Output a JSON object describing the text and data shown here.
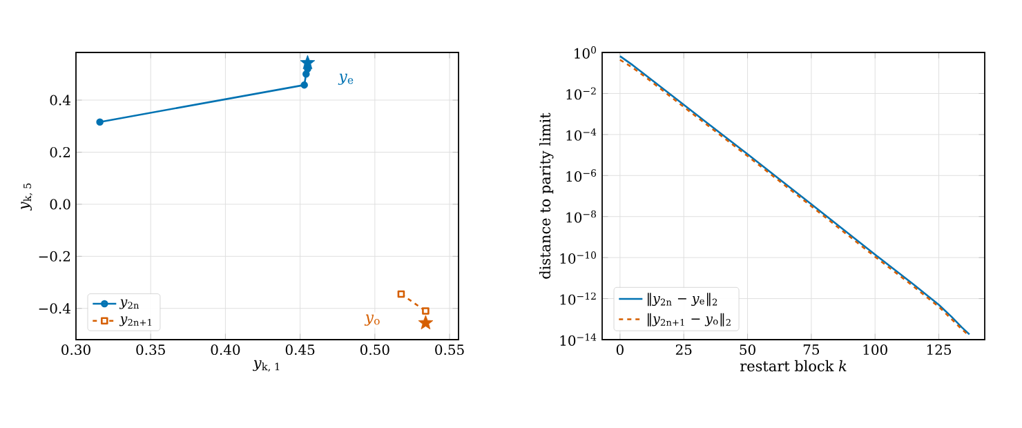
{
  "chart_data": [
    {
      "type": "line",
      "xlabel": "*y*$_{k, 1}$",
      "ylabel": "*y*$_{k, 5}$",
      "grid": true,
      "legend": "bottom left",
      "xlim": [
        0.3,
        0.556
      ],
      "ylim": [
        -0.52,
        0.583
      ],
      "xticks": [
        {
          "value": 0.3,
          "label": "0.30"
        },
        {
          "value": 0.35,
          "label": "0.35"
        },
        {
          "value": 0.4,
          "label": "0.40"
        },
        {
          "value": 0.45,
          "label": "0.45"
        },
        {
          "value": 0.5,
          "label": "0.50"
        },
        {
          "value": 0.55,
          "label": "0.55"
        }
      ],
      "yticks": [
        {
          "value": -0.4,
          "label": "−0.4"
        },
        {
          "value": -0.2,
          "label": "−0.2"
        },
        {
          "value": 0.0,
          "label": "0.0"
        },
        {
          "value": 0.2,
          "label": "0.2"
        },
        {
          "value": 0.4,
          "label": "0.4"
        }
      ],
      "series": [
        {
          "name": "*y*$_{2n}$",
          "color": "#0072b2",
          "marker": "circle",
          "line_style": "solid",
          "x": [
            0.316,
            0.4528,
            0.454,
            0.455
          ],
          "values": [
            0.316,
            0.458,
            0.5,
            0.52
          ]
        },
        {
          "name": "*y*$_{2n+1}$",
          "color": "#d55e00",
          "marker": "square",
          "line_style": "dashed",
          "x": [
            0.5176,
            0.534
          ],
          "values": [
            -0.345,
            -0.41
          ]
        },
        {
          "type": "scatter",
          "color": "#0072b2",
          "marker": "star",
          "x": [
            0.455
          ],
          "values": [
            0.543
          ]
        },
        {
          "type": "scatter",
          "color": "#d55e00",
          "marker": "star",
          "x": [
            0.534
          ],
          "values": [
            -0.456
          ]
        }
      ],
      "annotations": [
        {
          "text": "*y*$_{e}$",
          "x": 0.481,
          "y": 0.48
        },
        {
          "text": "*y*$_{o}$",
          "x": 0.4987,
          "y": -0.445
        }
      ]
    },
    {
      "type": "line",
      "xlabel": "restart block *k*",
      "ylabel": "distance to parity limit",
      "grid": true,
      "legend": "bottom left",
      "log": "y",
      "xlim": [
        -7,
        143
      ],
      "ylim": [
        1e-14,
        1
      ],
      "xticks": [
        0,
        25,
        50,
        75,
        100,
        125
      ],
      "yticks": [
        {
          "value": 1,
          "label": "10$^{0}$"
        },
        {
          "value": 0.01,
          "label": "10$^{−2}$"
        },
        {
          "value": 0.0001,
          "label": "10$^{−4}$"
        },
        {
          "value": 1e-06,
          "label": "10$^{−6}$"
        },
        {
          "value": 1e-08,
          "label": "10$^{−8}$"
        },
        {
          "value": 1e-10,
          "label": "10$^{−10}$"
        },
        {
          "value": 1e-12,
          "label": "10$^{−12}$"
        },
        {
          "value": 1e-14,
          "label": "10$^{−14}$"
        }
      ],
      "series": [
        {
          "name": "‖*y*$_{2n}$ − *y*$_{e}$‖$_{2}$",
          "color": "#0072b2",
          "line_style": "solid",
          "x": [
            0,
            5,
            10,
            25,
            50,
            75,
            100,
            115,
            125,
            130,
            134,
            137
          ],
          "values": [
            0.66,
            0.24,
            0.079,
            0.0028,
            1.1e-05,
            4e-08,
            1.4e-10,
            5e-12,
            5e-13,
            1.3e-13,
            4e-14,
            1.8e-14
          ]
        },
        {
          "name": "‖*y*$_{2n+1}$ − *y*$_{o}$‖$_{2}$",
          "color": "#d55e00",
          "line_style": "dashed",
          "x": [
            0,
            5,
            10,
            25,
            50,
            75,
            100,
            115,
            125,
            130,
            134,
            137
          ],
          "values": [
            0.44,
            0.18,
            0.063,
            0.0022,
            8.9e-06,
            3.2e-08,
            1.1e-10,
            4e-12,
            4e-13,
            1e-13,
            3.2e-14,
            1.5e-14
          ]
        }
      ]
    }
  ]
}
